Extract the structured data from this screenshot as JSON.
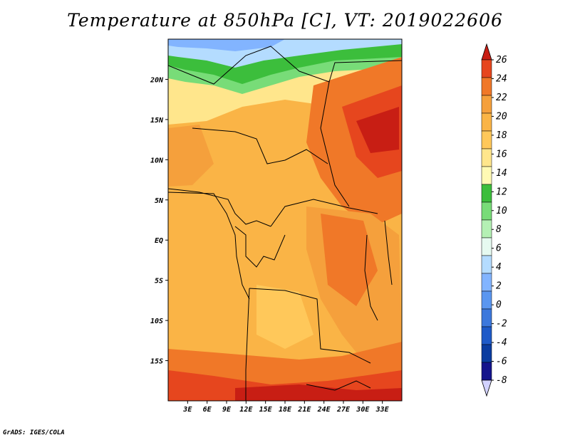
{
  "title": "Temperature at 850hPa [C], VT: 2019022606",
  "credit": "GrADS: IGES/COLA",
  "map": {
    "lon_range": [
      0,
      36
    ],
    "lat_range": [
      -20,
      25
    ],
    "lon_ticks": [
      "3E",
      "6E",
      "9E",
      "12E",
      "15E",
      "18E",
      "21E",
      "24E",
      "27E",
      "30E",
      "33E"
    ],
    "lat_ticks": [
      "20N",
      "15N",
      "10N",
      "5N",
      "EQ",
      "5S",
      "10S",
      "15S"
    ]
  },
  "colorbar": {
    "labels": [
      "26",
      "24",
      "22",
      "20",
      "18",
      "16",
      "14",
      "12",
      "10",
      "8",
      "6",
      "4",
      "2",
      "0",
      "-2",
      "-4",
      "-6",
      "-8"
    ],
    "colors": [
      "#f0f0f0",
      "#a0d2ff",
      "#82b4ff",
      "#5a96f0",
      "#3c78dc",
      "#1e5ac8",
      "#0a3ca0",
      "#14148c",
      "#d2d2ff",
      "#b4f0b4",
      "#78dc78",
      "#3cbe3c",
      "#fffab4",
      "#ffe68c",
      "#ffc85a",
      "#fab43c",
      "#f08228",
      "#e6461e",
      "#c81e14"
    ],
    "bands": [
      "#c81e14",
      "#e6461e",
      "#f07828",
      "#f5a03c",
      "#fab446",
      "#ffc85a",
      "#ffe68c",
      "#fffab4",
      "#3cbe3c",
      "#78dc78",
      "#b4f0b4",
      "#e6faf0",
      "#b4dcff",
      "#82b4ff",
      "#5a96f0",
      "#3c78dc",
      "#1e5ac8",
      "#0a3ca0",
      "#14148c",
      "#d2d2ff"
    ]
  }
}
